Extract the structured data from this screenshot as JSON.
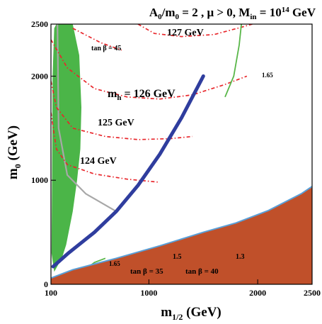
{
  "chart_data": {
    "type": "contour",
    "title": {
      "parts": [
        "A",
        "0",
        "/m",
        "0",
        " = 2 ,  μ > 0, M",
        "in",
        " = 10",
        "14",
        " GeV"
      ]
    },
    "xlabel": {
      "main": "m",
      "sub": "1/2",
      "tail": " (GeV)"
    },
    "ylabel": {
      "main": "m",
      "sub": "0",
      "tail": " (GeV)"
    },
    "xlim": [
      100,
      2500
    ],
    "ylim": [
      0,
      2500
    ],
    "x_ticks": [
      {
        "value": 100,
        "label": "100"
      },
      {
        "value": 1000,
        "label": "1000"
      },
      {
        "value": 2000,
        "label": "2000"
      },
      {
        "value": 2500,
        "label": "2500"
      }
    ],
    "y_ticks": [
      {
        "value": 0,
        "label": "0"
      },
      {
        "value": 1000,
        "label": "1000"
      },
      {
        "value": 2000,
        "label": "2000"
      },
      {
        "value": 2500,
        "label": "2500"
      }
    ],
    "colors": {
      "excluded_region": "#c0502a",
      "gminus2_band": "#4bb548",
      "dark_matter_strip": "#2f3d9e",
      "higgs_contours": "#e8262b",
      "chargino_boundary": "#5aa0d8",
      "bsmumu": "#58b648",
      "tanbeta_curves": "#a8a8a8"
    },
    "regions": {
      "excluded": {
        "name": "charged LSP (brown region)",
        "boundary": [
          [
            100,
            0
          ],
          [
            100,
            60
          ],
          [
            300,
            140
          ],
          [
            700,
            250
          ],
          [
            1100,
            370
          ],
          [
            1500,
            500
          ],
          [
            1800,
            590
          ],
          [
            2100,
            710
          ],
          [
            2400,
            870
          ],
          [
            2500,
            940
          ],
          [
            2500,
            0
          ]
        ]
      },
      "gminus2": {
        "name": "g-2 band (green)",
        "boundary": [
          [
            130,
            2460
          ],
          [
            150,
            2500
          ],
          [
            300,
            2500
          ],
          [
            360,
            2200
          ],
          [
            380,
            1700
          ],
          [
            370,
            1300
          ],
          [
            340,
            1000
          ],
          [
            300,
            700
          ],
          [
            240,
            380
          ],
          [
            200,
            250
          ],
          [
            130,
            120
          ],
          [
            105,
            300
          ],
          [
            110,
            1000
          ],
          [
            115,
            2000
          ]
        ]
      },
      "dark_matter": {
        "name": "relic density strip (dark blue)",
        "points": [
          [
            120,
            170
          ],
          [
            260,
            300
          ],
          [
            500,
            500
          ],
          [
            700,
            700
          ],
          [
            900,
            950
          ],
          [
            1100,
            1250
          ],
          [
            1300,
            1600
          ],
          [
            1450,
            1900
          ],
          [
            1500,
            2000
          ]
        ]
      }
    },
    "higgs_mass_contours": [
      {
        "label": "124 GeV",
        "points": [
          [
            100,
            1650
          ],
          [
            150,
            1300
          ],
          [
            250,
            1150
          ],
          [
            500,
            1060
          ],
          [
            800,
            1010
          ],
          [
            1100,
            980
          ]
        ]
      },
      {
        "label": "125 GeV",
        "points": [
          [
            100,
            1950
          ],
          [
            150,
            1700
          ],
          [
            300,
            1500
          ],
          [
            600,
            1420
          ],
          [
            900,
            1390
          ],
          [
            1200,
            1400
          ],
          [
            1400,
            1420
          ]
        ]
      },
      {
        "label": "126 GeV",
        "points": [
          [
            100,
            2350
          ],
          [
            250,
            2080
          ],
          [
            500,
            1880
          ],
          [
            800,
            1800
          ],
          [
            1100,
            1780
          ],
          [
            1400,
            1820
          ],
          [
            1700,
            1920
          ],
          [
            1900,
            2000
          ]
        ]
      },
      {
        "label": "127 GeV",
        "points": [
          [
            900,
            2500
          ],
          [
            1050,
            2410
          ],
          [
            1300,
            2380
          ],
          [
            1600,
            2400
          ],
          [
            1850,
            2470
          ],
          [
            1950,
            2500
          ]
        ]
      },
      {
        "label": "",
        "points": [
          [
            300,
            2460
          ],
          [
            560,
            2320
          ],
          [
            750,
            2250
          ]
        ]
      }
    ],
    "bsmumu_contours": [
      {
        "label": "1.65",
        "points": [
          [
            1850,
            2500
          ],
          [
            1830,
            2300
          ],
          [
            1780,
            2000
          ],
          [
            1700,
            1800
          ]
        ]
      },
      {
        "label": "1.65",
        "points": [
          [
            360,
            0
          ],
          [
            400,
            130
          ],
          [
            500,
            210
          ],
          [
            600,
            250
          ]
        ]
      },
      {
        "label": "1.5",
        "points": [
          [
            650,
            0
          ],
          [
            750,
            90
          ],
          [
            900,
            160
          ],
          [
            1050,
            250
          ]
        ]
      },
      {
        "label": "1.3",
        "points": [
          [
            1300,
            0
          ],
          [
            1400,
            60
          ],
          [
            1500,
            160
          ],
          [
            1600,
            300
          ]
        ]
      }
    ],
    "tanbeta_contours": [
      {
        "label": "tan β = 45",
        "points": [
          [
            160,
            2500
          ],
          [
            170,
            1500
          ],
          [
            250,
            1050
          ],
          [
            420,
            870
          ],
          [
            700,
            700
          ]
        ]
      },
      {
        "label": "tan β = 35",
        "points": [
          [
            820,
            0
          ],
          [
            950,
            130
          ],
          [
            1100,
            250
          ],
          [
            1200,
            320
          ]
        ]
      },
      {
        "label": "tan β = 40",
        "points": [
          [
            1450,
            0
          ],
          [
            1550,
            160
          ],
          [
            1700,
            330
          ],
          [
            1900,
            450
          ]
        ]
      }
    ]
  }
}
